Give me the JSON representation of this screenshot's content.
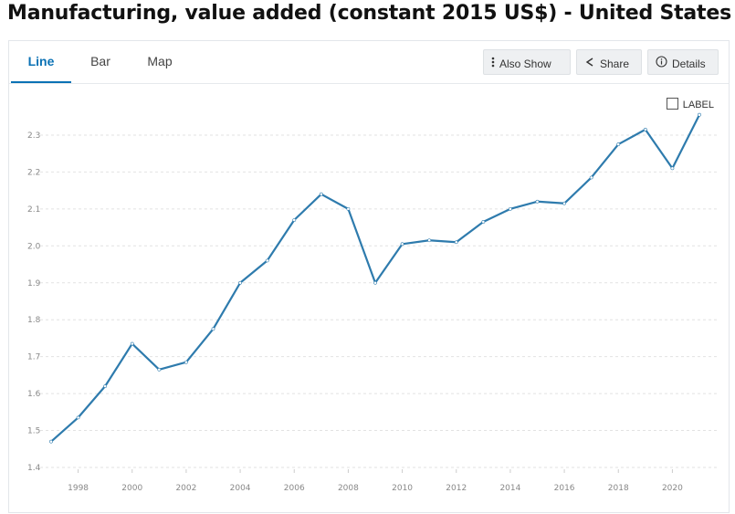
{
  "title": "Manufacturing, value added (constant 2015 US$) - United States",
  "tabs": [
    {
      "label": "Line",
      "active": true
    },
    {
      "label": "Bar",
      "active": false
    },
    {
      "label": "Map",
      "active": false
    }
  ],
  "toolbar": {
    "also_show": "Also Show",
    "share": "Share",
    "details": "Details"
  },
  "label_toggle": {
    "label": "LABEL",
    "checked": false
  },
  "colors": {
    "line": "#2e7bad",
    "accent": "#0b72b5",
    "grid": "#e2e2e2"
  },
  "chart_data": {
    "type": "line",
    "x": [
      1997,
      1998,
      1999,
      2000,
      2001,
      2002,
      2003,
      2004,
      2005,
      2006,
      2007,
      2008,
      2009,
      2010,
      2011,
      2012,
      2013,
      2014,
      2015,
      2016,
      2017,
      2018,
      2019,
      2020,
      2021
    ],
    "series": [
      {
        "values": [
          1.47,
          1.535,
          1.62,
          1.735,
          1.665,
          1.685,
          1.775,
          1.9,
          1.96,
          2.07,
          2.14,
          2.1,
          1.9,
          2.005,
          2.015,
          2.01,
          2.065,
          2.1,
          2.12,
          2.115,
          2.185,
          2.275,
          2.315,
          2.21,
          2.355
        ]
      }
    ],
    "xticks": [
      "1998",
      "2000",
      "2002",
      "2004",
      "2006",
      "2008",
      "2010",
      "2012",
      "2014",
      "2016",
      "2018",
      "2020"
    ],
    "yticks": [
      "1.4",
      "1.5",
      "1.6",
      "1.7",
      "1.8",
      "1.9",
      "2.0",
      "2.1",
      "2.2",
      "2.3"
    ],
    "xlim": [
      1997,
      2021
    ],
    "ylim": [
      1.4,
      2.35
    ],
    "grid": true,
    "title": "",
    "xlabel": "",
    "ylabel": ""
  }
}
